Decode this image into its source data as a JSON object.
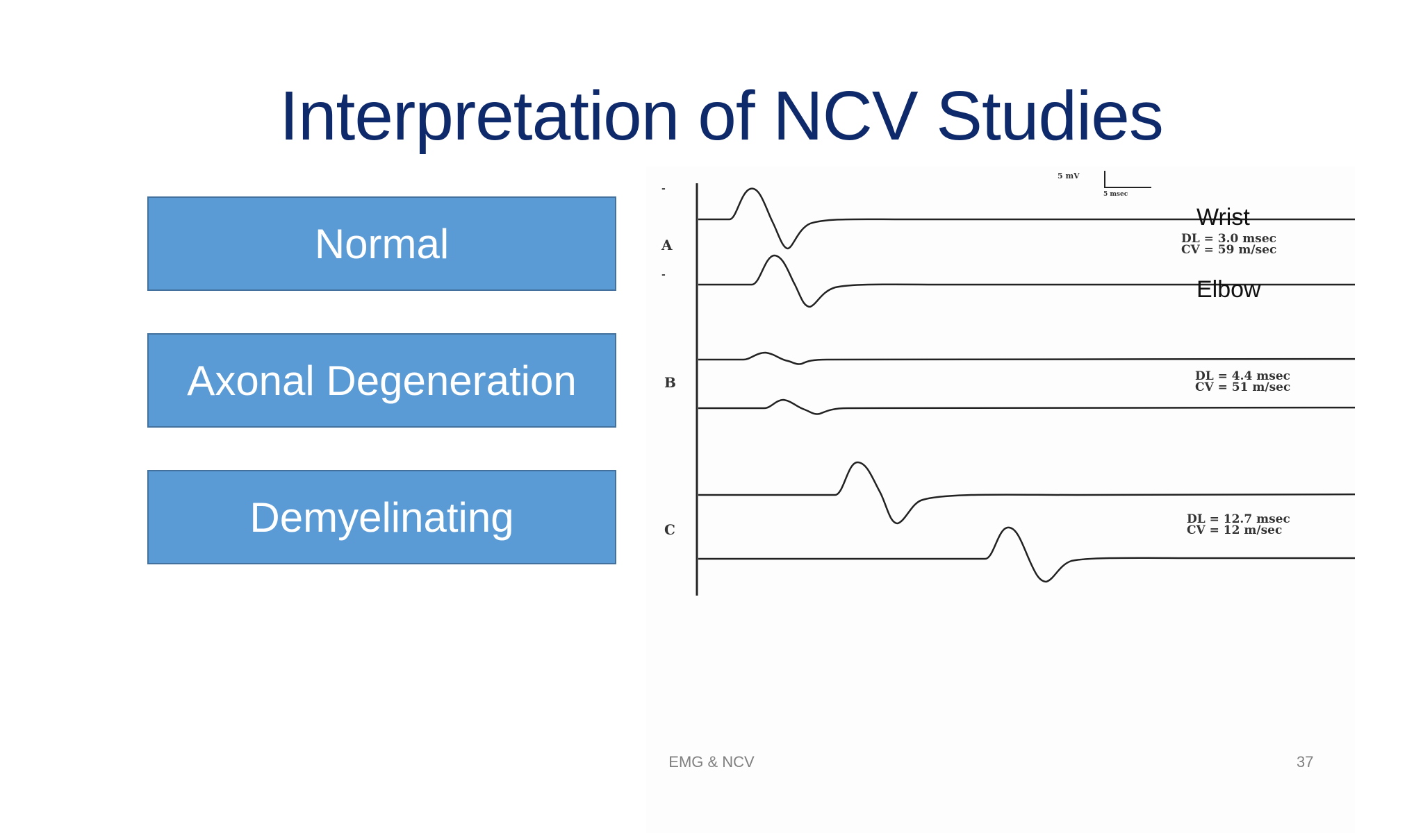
{
  "slide": {
    "title": "Interpretation of NCV Studies",
    "boxes": [
      "Normal",
      "Axonal Degeneration",
      "Demyelinating"
    ],
    "footer": "EMG & NCV",
    "page_number": "37"
  },
  "figure": {
    "scale_amplitude": "5 mV",
    "scale_time": "5 msec",
    "site_labels": {
      "wrist": "Wrist",
      "elbow": "Elbow"
    },
    "panels": [
      {
        "label": "A",
        "dl": "DL = 3.0 msec",
        "cv": "CV = 59 m/sec"
      },
      {
        "label": "B",
        "dl": "DL = 4.4 msec",
        "cv": "CV = 51 m/sec"
      },
      {
        "label": "C",
        "dl": "DL = 12.7 msec",
        "cv": "CV = 12 m/sec"
      }
    ]
  }
}
